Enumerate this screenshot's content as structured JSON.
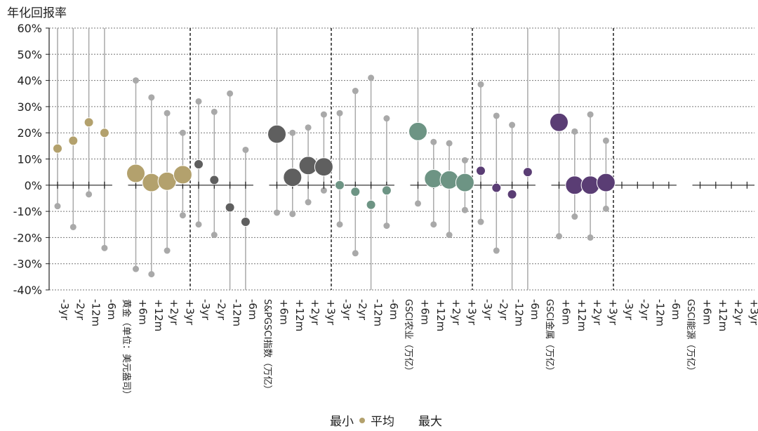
{
  "chart_data": {
    "type": "scatter",
    "ylabel": "年化回报率",
    "ylim": [
      -40,
      60
    ],
    "yticks": [
      60,
      50,
      40,
      30,
      20,
      10,
      0,
      -10,
      -20,
      -30,
      -40
    ],
    "ytick_labels": [
      "60%",
      "50%",
      "40%",
      "30%",
      "20%",
      "10%",
      "0%",
      "-10%",
      "-20%",
      "-30%",
      "-40%"
    ],
    "grid": true,
    "legend": {
      "position": "bottom",
      "items": [
        "最小",
        "平均",
        "最大"
      ]
    },
    "categories": [
      "-3yr",
      "-2yr",
      "-12m",
      "-6m",
      "group",
      "+6m",
      "+12m",
      "+2yr",
      "+3yr"
    ],
    "groups": [
      {
        "label": "黄金（单位：美元盎司）",
        "color": "#b3a16d",
        "points": [
          {
            "cat": "-3yr",
            "min": -8,
            "avg": 14,
            "max": 60
          },
          {
            "cat": "-2yr",
            "min": -16,
            "avg": 17,
            "max": 60
          },
          {
            "cat": "-12m",
            "min": -3.5,
            "avg": 24,
            "max": 60
          },
          {
            "cat": "-6m",
            "min": -24,
            "avg": 20,
            "max": 60
          },
          {
            "cat": "+6m",
            "min": -32,
            "avg": 4.5,
            "max": 40
          },
          {
            "cat": "+12m",
            "min": -34,
            "avg": 1,
            "max": 33.5
          },
          {
            "cat": "+2yr",
            "min": -25,
            "avg": 1.5,
            "max": 27.5
          },
          {
            "cat": "+3yr",
            "min": -11.5,
            "avg": 4,
            "max": 20
          }
        ]
      },
      {
        "label": "S&PGSCI指数（万亿）",
        "color": "#5f5f5f",
        "points": [
          {
            "cat": "-3yr",
            "min": -15,
            "avg": 8,
            "max": 32
          },
          {
            "cat": "-2yr",
            "min": -19,
            "avg": 2,
            "max": 28
          },
          {
            "cat": "-12m",
            "min": -40,
            "avg": -8.5,
            "max": 35
          },
          {
            "cat": "-6m",
            "min": -40,
            "avg": -14,
            "max": 13.5
          },
          {
            "cat": "+6m",
            "min": -10.5,
            "avg": 19.5,
            "max": 60
          },
          {
            "cat": "+12m",
            "min": -11,
            "avg": 3,
            "max": 20
          },
          {
            "cat": "+2yr",
            "min": -6.5,
            "avg": 7.5,
            "max": 22
          },
          {
            "cat": "+3yr",
            "min": -2,
            "avg": 7,
            "max": 27
          }
        ]
      },
      {
        "label": "GSCI农业（万亿）",
        "color": "#6d9484",
        "points": [
          {
            "cat": "-3yr",
            "min": -15,
            "avg": 0,
            "max": 27.5
          },
          {
            "cat": "-2yr",
            "min": -26,
            "avg": -2.5,
            "max": 36
          },
          {
            "cat": "-12m",
            "min": -40,
            "avg": -7.5,
            "max": 41
          },
          {
            "cat": "-6m",
            "min": -15.5,
            "avg": -2,
            "max": 25.5
          },
          {
            "cat": "+6m",
            "min": -7,
            "avg": 20.5,
            "max": 60
          },
          {
            "cat": "+12m",
            "min": -15,
            "avg": 2.5,
            "max": 16.5
          },
          {
            "cat": "+2yr",
            "min": -19,
            "avg": 2,
            "max": 16
          },
          {
            "cat": "+3yr",
            "min": -9.5,
            "avg": 1,
            "max": 9.5
          }
        ]
      },
      {
        "label": "GSCI金属（万亿）",
        "color": "#5a3d74",
        "points": [
          {
            "cat": "-3yr",
            "min": -14,
            "avg": 5.5,
            "max": 38.5
          },
          {
            "cat": "-2yr",
            "min": -25,
            "avg": -1,
            "max": 26.5
          },
          {
            "cat": "-12m",
            "min": -40,
            "avg": -3.5,
            "max": 23
          },
          {
            "cat": "-6m",
            "min": -40,
            "avg": 5,
            "max": 60
          },
          {
            "cat": "+6m",
            "min": -19.5,
            "avg": 24,
            "max": 60
          },
          {
            "cat": "+12m",
            "min": -12,
            "avg": 0,
            "max": 20.5
          },
          {
            "cat": "+2yr",
            "min": -20,
            "avg": 0,
            "max": 27
          },
          {
            "cat": "+3yr",
            "min": -9,
            "avg": 1,
            "max": 17
          }
        ]
      },
      {
        "label": "GSCI能源（万亿）",
        "color": "#5a3d74",
        "points": []
      }
    ]
  }
}
